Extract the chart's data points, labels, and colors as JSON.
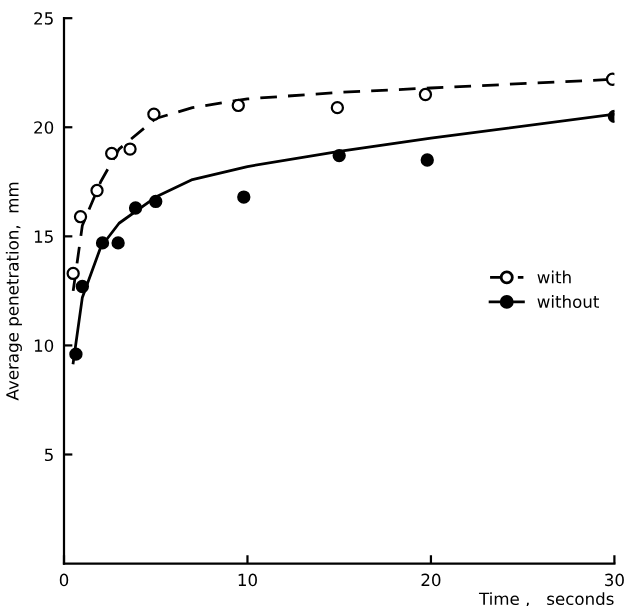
{
  "chart_data": {
    "type": "scatter",
    "xlabel": "Time ,   seconds",
    "ylabel": "Average penetration,  mm",
    "xlim": [
      0,
      30
    ],
    "ylim": [
      0,
      25
    ],
    "xticks": [
      0,
      10,
      20,
      30
    ],
    "yticks": [
      5,
      10,
      15,
      20,
      25
    ],
    "grid": false,
    "legend": "center right",
    "series": [
      {
        "name": "with",
        "color": "#000000",
        "marker": "circle",
        "line_style": "dashed",
        "x": [
          0.5,
          0.9,
          1.8,
          2.6,
          3.6,
          4.9,
          9.5,
          14.9,
          19.7,
          29.9
        ],
        "values": [
          13.3,
          15.9,
          17.1,
          18.8,
          19.0,
          20.6,
          21.0,
          20.9,
          21.5,
          22.2
        ]
      },
      {
        "name": "without",
        "color": "#000000",
        "marker": "circle",
        "line_style": "solid",
        "x": [
          0.65,
          1.0,
          2.1,
          2.95,
          3.9,
          5.0,
          9.8,
          15,
          19.8,
          30
        ],
        "values": [
          9.6,
          12.7,
          14.7,
          14.7,
          16.3,
          16.6,
          16.8,
          18.7,
          18.5,
          20.5
        ]
      },
      {
        "type": "line",
        "color": "#000000",
        "line_style": "dashed",
        "marker": "none",
        "x": [
          0.5,
          1,
          2,
          3,
          5,
          7,
          10,
          15,
          20,
          30
        ],
        "values": [
          12.5,
          15.5,
          17.5,
          19.0,
          20.4,
          20.9,
          21.3,
          21.6,
          21.8,
          22.2
        ]
      },
      {
        "type": "line",
        "color": "#000000",
        "line_style": "solid",
        "marker": "none",
        "x": [
          0.5,
          1,
          2,
          3,
          5,
          7,
          10,
          15,
          20,
          30
        ],
        "values": [
          9.2,
          12.2,
          14.5,
          15.6,
          16.8,
          17.6,
          18.2,
          18.9,
          19.5,
          20.6
        ]
      }
    ]
  }
}
